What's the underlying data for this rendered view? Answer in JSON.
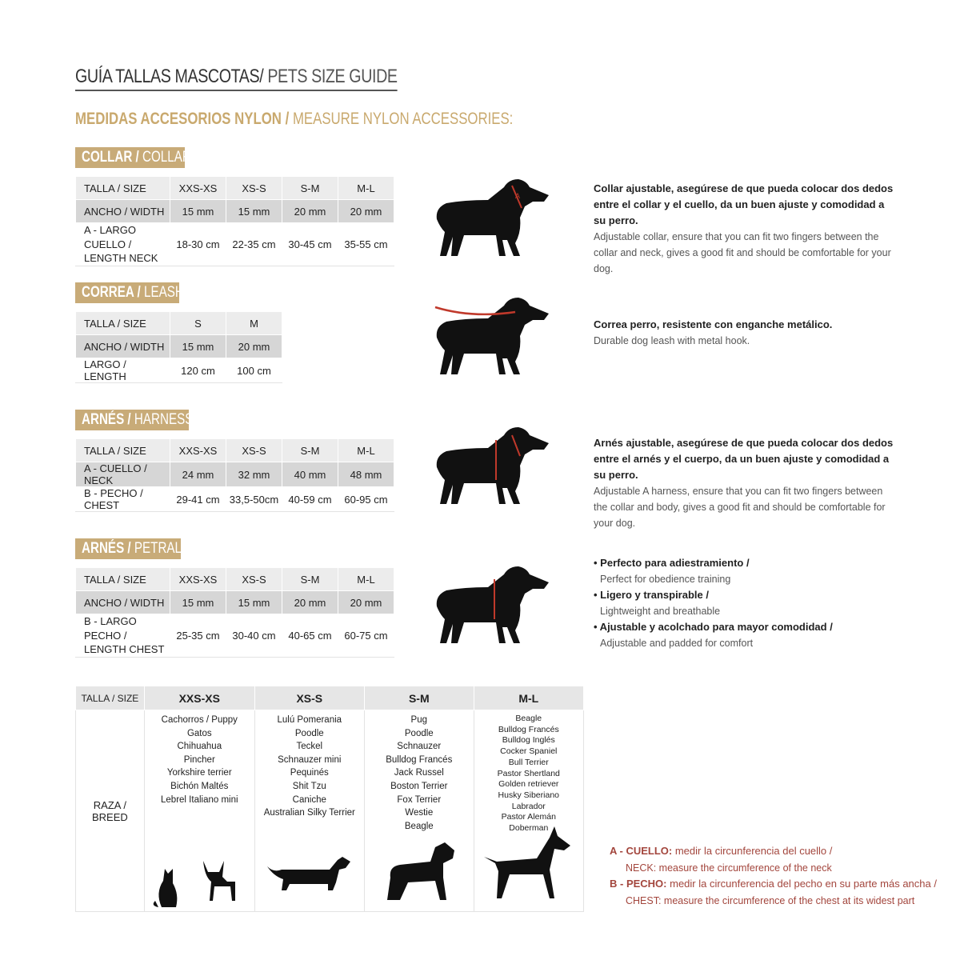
{
  "header": {
    "title_bold": "GUÍA TALLAS MASCOTAS/",
    "title_light": " PETS SIZE GUIDE",
    "subtitle_bold": "MEDIDAS ACCESORIOS NYLON /",
    "subtitle_light": " MEASURE NYLON ACCESSORIES:"
  },
  "colors": {
    "gold": "#c8ab78",
    "red": "#a3463d",
    "row_light": "#ececec",
    "row_dark": "#d6d6d6"
  },
  "collar": {
    "tag_es": "COLLAR /",
    "tag_en": " COLLAR",
    "rows": [
      [
        "TALLA / SIZE",
        "XXS-XS",
        "XS-S",
        "S-M",
        "M-L"
      ],
      [
        "ANCHO / WIDTH",
        "15 mm",
        "15 mm",
        "20 mm",
        "20 mm"
      ],
      [
        "A - LARGO CUELLO / LENGTH NECK",
        "18-30 cm",
        "22-35 cm",
        "30-45 cm",
        "35-55 cm"
      ]
    ],
    "desc_es": "Collar ajustable, asegúrese de que pueda colocar dos dedos entre el collar y el cuello, da un buen ajuste y comodidad a su perro.",
    "desc_en": "Adjustable collar, ensure that you can fit two fingers between the collar and neck, gives a good fit and should be comfortable for your dog."
  },
  "leash": {
    "tag_es": "CORREA /",
    "tag_en": " LEASH",
    "rows": [
      [
        "TALLA / SIZE",
        "S",
        "M"
      ],
      [
        "ANCHO / WIDTH",
        "15 mm",
        "20 mm"
      ],
      [
        "LARGO / LENGTH",
        "120 cm",
        "100 cm"
      ]
    ],
    "desc_es": "Correa perro, resistente con enganche metálico.",
    "desc_en": "Durable dog leash with metal hook."
  },
  "harness": {
    "tag_es": "ARNÉS /",
    "tag_en": " HARNESS",
    "rows": [
      [
        "TALLA / SIZE",
        "XXS-XS",
        "XS-S",
        "S-M",
        "M-L"
      ],
      [
        "A - CUELLO / NECK",
        "24 mm",
        "32 mm",
        "40 mm",
        "48 mm"
      ],
      [
        "B - PECHO / CHEST",
        "29-41 cm",
        "33,5-50cm",
        "40-59 cm",
        "60-95 cm"
      ]
    ],
    "desc_es": "Arnés ajustable, asegúrese de que pueda colocar dos dedos entre el arnés y el cuerpo, da un buen ajuste y comodidad a su perro.",
    "desc_en": "Adjustable A harness, ensure that you can fit two fingers between the collar and body, gives a good fit and should be comfortable for your dog."
  },
  "petral": {
    "tag_es": "ARNÉS /",
    "tag_en": " PETRAL",
    "rows": [
      [
        "TALLA / SIZE",
        "XXS-XS",
        "XS-S",
        "S-M",
        "M-L"
      ],
      [
        "ANCHO / WIDTH",
        "15 mm",
        "15 mm",
        "20 mm",
        "20 mm"
      ],
      [
        "B - LARGO PECHO / LENGTH CHEST",
        "25-35 cm",
        "30-40 cm",
        "40-65 cm",
        "60-75 cm"
      ]
    ],
    "bullets": [
      {
        "es": "• Perfecto para adiestramiento /",
        "en": "Perfect for obedience training"
      },
      {
        "es": "• Ligero y transpirable /",
        "en": "Lightweight and breathable"
      },
      {
        "es": "• Ajustable y acolchado para mayor comodidad /",
        "en": "Adjustable and padded for comfort"
      }
    ]
  },
  "breeds": {
    "size_label": "TALLA /  SIZE",
    "row_label": "RAZA / BREED",
    "columns": [
      {
        "size": "XXS-XS",
        "items": [
          "Cachorros / Puppy",
          "Gatos",
          "Chihuahua",
          "Pincher",
          "Yorkshire terrier",
          "Bichón Maltés",
          "Lebrel Italiano mini"
        ]
      },
      {
        "size": "XS-S",
        "items": [
          "Lulú Pomerania",
          "Poodle",
          "Teckel",
          "Schnauzer mini",
          "Pequinés",
          "Shit Tzu",
          "Caniche",
          "Australian Silky Terrier"
        ]
      },
      {
        "size": "S-M",
        "items": [
          "Pug",
          "Poodle",
          "Schnauzer",
          "Bulldog Francés",
          "Jack Russel",
          "Boston Terrier",
          "Fox Terrier",
          "Westie",
          "Beagle"
        ]
      },
      {
        "size": "M-L",
        "items": [
          "Beagle",
          "Bulldog Francés",
          "Bulldog Inglés",
          "Cocker Spaniel",
          "Bull Terrier",
          "Pastor Shertland",
          "Golden retriever",
          "Husky Siberiano",
          "Labrador",
          "Pastor Alemán",
          "Doberman"
        ]
      }
    ]
  },
  "legend": {
    "a_es_bold": "A - CUELLO:",
    "a_es": " medir la circunferencia del cuello /",
    "a_en_bold": "NECK:",
    "a_en": " measure the circumference of the neck",
    "b_es_bold": "B - PECHO:",
    "b_es": " medir la circunferencia del pecho en su parte más ancha /",
    "b_en_bold": "CHEST:",
    "b_en": " measure the circumference of the chest at its widest part"
  }
}
